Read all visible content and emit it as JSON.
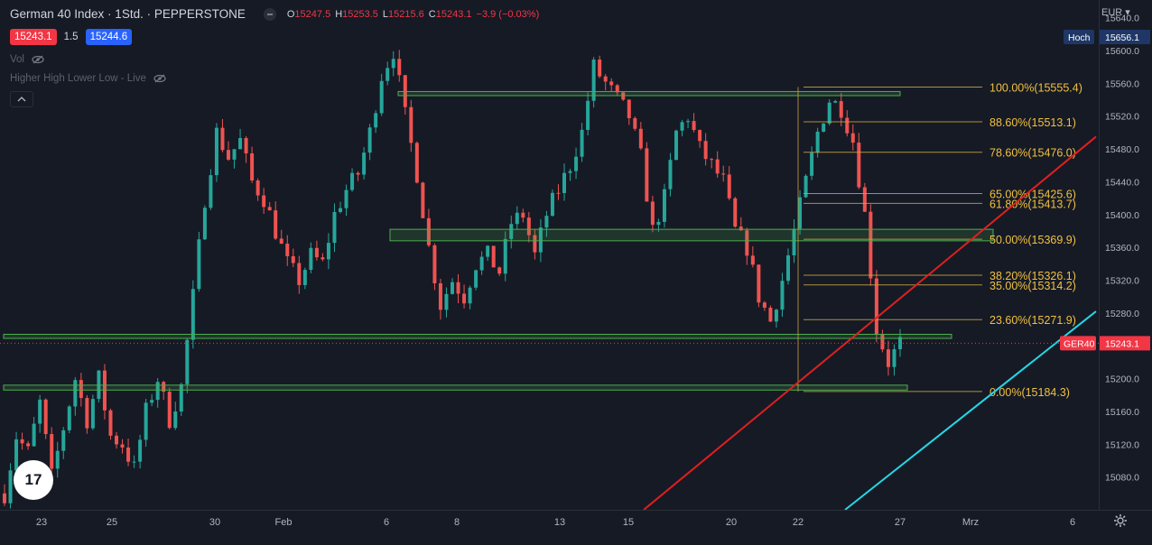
{
  "header": {
    "symbol": "German 40 Index · 1Std. · PEPPERSTONE",
    "open_label": "O",
    "open": "15247.5",
    "high_label": "H",
    "high": "15253.5",
    "low_label": "L",
    "low": "15215.6",
    "close_label": "C",
    "close": "15243.1",
    "change": "−3.9 (−0.03%)",
    "bid": "15243.1",
    "spread": "1.5",
    "ask": "15244.6"
  },
  "indicators": [
    {
      "label": "Vol"
    },
    {
      "label": "Higher High Lower Low - Live"
    }
  ],
  "currency": "EUR",
  "logo_text": "17",
  "colors": {
    "background": "#161a25",
    "up": "#26a69a",
    "down": "#ef5350",
    "zone": "#4caf50",
    "fib": "#c8a43f",
    "fib_text": "#f0c040",
    "trend_red": "#e01f1f",
    "trend_cyan": "#26d6e6",
    "high_badge": "#1e3766"
  },
  "chart_data": {
    "type": "candlestick",
    "title": "",
    "currency": "EUR",
    "y_range": [
      15040,
      15656.1
    ],
    "y_ticks": [
      15080,
      15120,
      15160,
      15200,
      15240,
      15280,
      15320,
      15360,
      15400,
      15440,
      15480,
      15520,
      15560,
      15600,
      15640
    ],
    "x_ticks": [
      "23",
      "25",
      "30",
      "Feb",
      "6",
      "8",
      "13",
      "15",
      "20",
      "22",
      "27",
      "Mrz",
      "6"
    ],
    "last_price": {
      "label": "GER40",
      "value": 15243.1
    },
    "high_marker": {
      "label": "Hoch",
      "value": 15656.1
    },
    "fibonacci": {
      "levels": [
        {
          "ratio": "100.00%",
          "price": 15555.4,
          "label": "100.00%(15555.4)"
        },
        {
          "ratio": "88.60%",
          "price": 15513.1,
          "label": "88.60%(15513.1)"
        },
        {
          "ratio": "78.60%",
          "price": 15476.0,
          "label": "78.60%(15476.0)"
        },
        {
          "ratio": "65.00%",
          "price": 15425.6,
          "label": "65.00%(15425.6)"
        },
        {
          "ratio": "61.80%",
          "price": 15413.7,
          "label": "61.80%(15413.7)"
        },
        {
          "ratio": "50.00%",
          "price": 15369.9,
          "label": "50.00%(15369.9)"
        },
        {
          "ratio": "38.20%",
          "price": 15326.1,
          "label": "38.20%(15326.1)"
        },
        {
          "ratio": "35.00%",
          "price": 15314.2,
          "label": "35.00%(15314.2)"
        },
        {
          "ratio": "23.60%",
          "price": 15271.9,
          "label": "23.60%(15271.9)"
        },
        {
          "ratio": "0.00%",
          "price": 15184.3,
          "label": "0.00%(15184.3)"
        }
      ]
    },
    "zones": [
      {
        "from": 15545,
        "to": 15550
      },
      {
        "from": 15368,
        "to": 15382
      },
      {
        "from": 15249,
        "to": 15254
      },
      {
        "from": 15186,
        "to": 15192
      }
    ],
    "trendlines": [
      {
        "color": "red",
        "from_price": 15040,
        "to_price": 15495
      },
      {
        "color": "cyan",
        "from_price": 15040,
        "to_price": 15282
      }
    ],
    "path": [
      [
        0,
        15060
      ],
      [
        2,
        15130
      ],
      [
        4,
        15110
      ],
      [
        6,
        15170
      ],
      [
        8,
        15080
      ],
      [
        10,
        15140
      ],
      [
        12,
        15200
      ],
      [
        14,
        15150
      ],
      [
        16,
        15200
      ],
      [
        18,
        15130
      ],
      [
        20,
        15120
      ],
      [
        22,
        15090
      ],
      [
        24,
        15160
      ],
      [
        26,
        15200
      ],
      [
        28,
        15150
      ],
      [
        30,
        15190
      ],
      [
        32,
        15300
      ],
      [
        34,
        15420
      ],
      [
        36,
        15500
      ],
      [
        38,
        15470
      ],
      [
        40,
        15490
      ],
      [
        42,
        15440
      ],
      [
        44,
        15420
      ],
      [
        46,
        15380
      ],
      [
        48,
        15340
      ],
      [
        50,
        15320
      ],
      [
        52,
        15350
      ],
      [
        54,
        15340
      ],
      [
        56,
        15400
      ],
      [
        58,
        15430
      ],
      [
        60,
        15450
      ],
      [
        62,
        15500
      ],
      [
        64,
        15570
      ],
      [
        66,
        15600
      ],
      [
        68,
        15520
      ],
      [
        70,
        15450
      ],
      [
        72,
        15360
      ],
      [
        74,
        15290
      ],
      [
        76,
        15320
      ],
      [
        78,
        15300
      ],
      [
        80,
        15340
      ],
      [
        82,
        15350
      ],
      [
        84,
        15330
      ],
      [
        86,
        15390
      ],
      [
        88,
        15400
      ],
      [
        90,
        15350
      ],
      [
        92,
        15400
      ],
      [
        94,
        15430
      ],
      [
        96,
        15460
      ],
      [
        98,
        15500
      ],
      [
        100,
        15580
      ],
      [
        102,
        15560
      ],
      [
        104,
        15540
      ],
      [
        106,
        15520
      ],
      [
        108,
        15470
      ],
      [
        110,
        15380
      ],
      [
        112,
        15420
      ],
      [
        114,
        15500
      ],
      [
        116,
        15520
      ],
      [
        118,
        15480
      ],
      [
        120,
        15460
      ],
      [
        122,
        15440
      ],
      [
        124,
        15380
      ],
      [
        126,
        15360
      ],
      [
        128,
        15300
      ],
      [
        130,
        15270
      ],
      [
        132,
        15320
      ],
      [
        134,
        15380
      ],
      [
        136,
        15440
      ],
      [
        138,
        15500
      ],
      [
        140,
        15540
      ],
      [
        142,
        15530
      ],
      [
        144,
        15490
      ],
      [
        146,
        15400
      ],
      [
        148,
        15260
      ],
      [
        150,
        15220
      ],
      [
        152,
        15243
      ]
    ]
  }
}
